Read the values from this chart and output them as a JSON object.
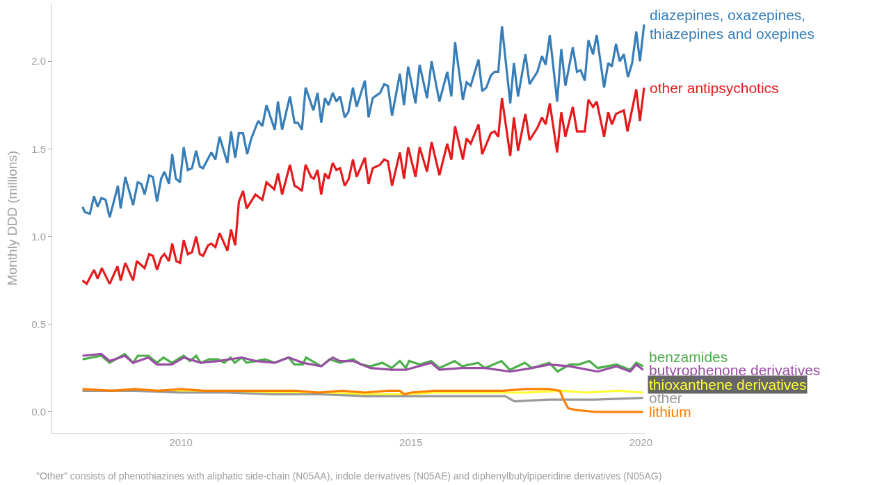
{
  "chart_data": {
    "type": "line",
    "ylabel": "Monthly DDD (millions)",
    "annotations": [
      "\"Other\" consists of phenothiazines with aliphatic side-chain (N05AA), indole derivatives (N05AE) and diphenylbutylpiperidine derivatives (N05AG)"
    ],
    "xlim": [
      2007.2,
      2020.1
    ],
    "ylim": [
      -0.12,
      2.33
    ],
    "xticks": [
      2010,
      2015,
      2020
    ],
    "yticks": [
      {
        "value": 0,
        "label": "0.0"
      },
      {
        "value": 0.5,
        "label": "0.5"
      },
      {
        "value": 1,
        "label": "1.0"
      },
      {
        "value": 1.5,
        "label": "1.5"
      },
      {
        "value": 2,
        "label": "2.0"
      }
    ],
    "grid": false,
    "legend": false,
    "series": [
      {
        "name": "diazepines, oxazepines,\nthiazepines and oxepines",
        "color": "#377eb8",
        "x": [
          2007.86,
          2007.91,
          2008.02,
          2008.11,
          2008.19,
          2008.27,
          2008.36,
          2008.45,
          2008.63,
          2008.69,
          2008.79,
          2008.96,
          2009.06,
          2009.14,
          2009.21,
          2009.31,
          2009.39,
          2009.48,
          2009.57,
          2009.64,
          2009.74,
          2009.81,
          2009.89,
          2009.98,
          2010.06,
          2010.15,
          2010.24,
          2010.33,
          2010.41,
          2010.48,
          2010.66,
          2010.75,
          2010.84,
          2011.01,
          2011.09,
          2011.18,
          2011.26,
          2011.35,
          2011.44,
          2011.53,
          2011.68,
          2011.77,
          2011.86,
          2012.04,
          2012.11,
          2012.2,
          2012.37,
          2012.47,
          2012.54,
          2012.63,
          2012.71,
          2012.88,
          2012.97,
          2013.05,
          2013.13,
          2013.21,
          2013.3,
          2013.38,
          2013.46,
          2013.56,
          2013.64,
          2013.74,
          2013.82,
          2014.0,
          2014.08,
          2014.17,
          2014.33,
          2014.42,
          2014.5,
          2014.59,
          2014.76,
          2014.85,
          2014.94,
          2015.1,
          2015.19,
          2015.35,
          2015.45,
          2015.62,
          2015.79,
          2015.88,
          2015.96,
          2016.13,
          2016.21,
          2016.3,
          2016.47,
          2016.55,
          2016.64,
          2016.74,
          2016.82,
          2016.9,
          2016.98,
          2017.16,
          2017.24,
          2017.33,
          2017.49,
          2017.58,
          2017.75,
          2017.85,
          2017.93,
          2018.02,
          2018.18,
          2018.27,
          2018.36,
          2018.52,
          2018.61,
          2018.69,
          2018.78,
          2018.86,
          2018.96,
          2019.04,
          2019.2,
          2019.29,
          2019.37,
          2019.46,
          2019.54,
          2019.63,
          2019.72,
          2019.81,
          2019.9,
          2019.98,
          2020.07
        ],
        "values": [
          1.17,
          1.14,
          1.13,
          1.23,
          1.17,
          1.22,
          1.21,
          1.11,
          1.29,
          1.16,
          1.34,
          1.18,
          1.31,
          1.3,
          1.24,
          1.35,
          1.34,
          1.2,
          1.33,
          1.37,
          1.3,
          1.47,
          1.33,
          1.31,
          1.51,
          1.38,
          1.39,
          1.49,
          1.4,
          1.39,
          1.48,
          1.44,
          1.57,
          1.42,
          1.6,
          1.45,
          1.59,
          1.59,
          1.47,
          1.56,
          1.66,
          1.63,
          1.75,
          1.61,
          1.77,
          1.61,
          1.8,
          1.65,
          1.65,
          1.61,
          1.85,
          1.72,
          1.82,
          1.65,
          1.79,
          1.75,
          1.82,
          1.77,
          1.8,
          1.68,
          1.71,
          1.85,
          1.74,
          1.89,
          1.68,
          1.79,
          1.82,
          1.87,
          1.86,
          1.69,
          1.93,
          1.75,
          1.97,
          1.76,
          1.98,
          1.79,
          2.0,
          1.77,
          1.94,
          1.8,
          2.11,
          1.78,
          1.88,
          1.86,
          2.01,
          1.83,
          1.85,
          1.92,
          1.94,
          1.94,
          2.2,
          1.76,
          1.99,
          1.8,
          2.04,
          1.87,
          1.94,
          2.03,
          1.98,
          2.15,
          1.77,
          2.07,
          1.86,
          2.08,
          1.94,
          1.95,
          1.89,
          2.12,
          2.04,
          2.15,
          1.85,
          1.99,
          1.97,
          2.1,
          2.0,
          2.04,
          1.91,
          1.99,
          2.17,
          2.0,
          2.21
        ]
      },
      {
        "name": "other antipsychotics",
        "color": "#e41a1c",
        "x": [
          2007.86,
          2007.95,
          2008.11,
          2008.19,
          2008.28,
          2008.45,
          2008.62,
          2008.69,
          2008.79,
          2008.96,
          2009.04,
          2009.21,
          2009.31,
          2009.39,
          2009.48,
          2009.57,
          2009.64,
          2009.74,
          2009.81,
          2009.9,
          2009.98,
          2010.06,
          2010.15,
          2010.24,
          2010.33,
          2010.41,
          2010.48,
          2010.59,
          2010.66,
          2010.75,
          2010.84,
          2011.01,
          2011.09,
          2011.18,
          2011.26,
          2011.35,
          2011.43,
          2011.62,
          2011.77,
          2011.86,
          2012.03,
          2012.11,
          2012.2,
          2012.37,
          2012.47,
          2012.54,
          2012.63,
          2012.71,
          2012.83,
          2012.89,
          2012.97,
          2013.05,
          2013.13,
          2013.21,
          2013.3,
          2013.38,
          2013.46,
          2013.56,
          2013.65,
          2013.74,
          2013.82,
          2014.0,
          2014.08,
          2014.17,
          2014.33,
          2014.42,
          2014.5,
          2014.59,
          2014.76,
          2014.85,
          2014.94,
          2015.1,
          2015.19,
          2015.35,
          2015.45,
          2015.62,
          2015.79,
          2015.88,
          2015.96,
          2016.13,
          2016.21,
          2016.3,
          2016.47,
          2016.55,
          2016.74,
          2016.82,
          2016.9,
          2016.98,
          2017.16,
          2017.24,
          2017.33,
          2017.49,
          2017.58,
          2017.75,
          2017.85,
          2017.93,
          2018.02,
          2018.18,
          2018.27,
          2018.36,
          2018.52,
          2018.61,
          2018.78,
          2018.86,
          2018.96,
          2019.04,
          2019.2,
          2019.29,
          2019.37,
          2019.46,
          2019.63,
          2019.71,
          2019.9,
          2019.98,
          2020.07
        ],
        "values": [
          0.75,
          0.73,
          0.81,
          0.76,
          0.82,
          0.73,
          0.83,
          0.75,
          0.85,
          0.75,
          0.86,
          0.82,
          0.9,
          0.89,
          0.81,
          0.88,
          0.9,
          0.86,
          0.96,
          0.86,
          0.85,
          0.98,
          0.9,
          0.91,
          1.0,
          0.9,
          0.89,
          0.95,
          0.96,
          0.94,
          1.02,
          0.92,
          1.04,
          0.95,
          1.2,
          1.26,
          1.16,
          1.24,
          1.21,
          1.31,
          1.27,
          1.36,
          1.24,
          1.41,
          1.29,
          1.28,
          1.26,
          1.41,
          1.34,
          1.33,
          1.38,
          1.24,
          1.36,
          1.33,
          1.42,
          1.38,
          1.39,
          1.29,
          1.33,
          1.44,
          1.34,
          1.45,
          1.3,
          1.39,
          1.41,
          1.44,
          1.43,
          1.29,
          1.48,
          1.33,
          1.51,
          1.34,
          1.51,
          1.37,
          1.54,
          1.35,
          1.53,
          1.44,
          1.63,
          1.44,
          1.56,
          1.53,
          1.64,
          1.47,
          1.59,
          1.6,
          1.57,
          1.79,
          1.46,
          1.68,
          1.49,
          1.7,
          1.55,
          1.62,
          1.68,
          1.64,
          1.76,
          1.48,
          1.71,
          1.57,
          1.74,
          1.6,
          1.6,
          1.78,
          1.74,
          1.77,
          1.57,
          1.71,
          1.64,
          1.7,
          1.72,
          1.6,
          1.84,
          1.66,
          1.85
        ]
      },
      {
        "name": "benzamides",
        "color": "#4daf4a",
        "x": [
          2007.86,
          2008.07,
          2008.27,
          2008.45,
          2008.78,
          2008.96,
          2009.06,
          2009.29,
          2009.48,
          2009.62,
          2009.8,
          2010.06,
          2010.2,
          2010.33,
          2010.43,
          2010.61,
          2010.81,
          2010.94,
          2011.08,
          2011.17,
          2011.32,
          2011.43,
          2011.63,
          2011.83,
          2012.04,
          2012.34,
          2012.47,
          2012.65,
          2012.72,
          2013.05,
          2013.23,
          2013.46,
          2013.74,
          2013.92,
          2014.12,
          2014.38,
          2014.58,
          2014.76,
          2014.89,
          2014.96,
          2015.19,
          2015.44,
          2015.62,
          2015.95,
          2016.11,
          2016.46,
          2016.61,
          2016.97,
          2017.15,
          2017.48,
          2017.63,
          2018.01,
          2018.19,
          2018.45,
          2018.65,
          2018.88,
          2019.06,
          2019.47,
          2019.77,
          2019.9,
          2020.05
        ],
        "values": [
          0.3,
          0.31,
          0.32,
          0.28,
          0.33,
          0.28,
          0.32,
          0.32,
          0.28,
          0.31,
          0.28,
          0.32,
          0.29,
          0.32,
          0.28,
          0.3,
          0.3,
          0.28,
          0.31,
          0.28,
          0.31,
          0.28,
          0.29,
          0.3,
          0.28,
          0.31,
          0.27,
          0.27,
          0.31,
          0.26,
          0.3,
          0.28,
          0.3,
          0.27,
          0.26,
          0.28,
          0.25,
          0.29,
          0.25,
          0.29,
          0.27,
          0.29,
          0.25,
          0.29,
          0.26,
          0.28,
          0.25,
          0.29,
          0.24,
          0.28,
          0.25,
          0.28,
          0.23,
          0.27,
          0.27,
          0.29,
          0.25,
          0.27,
          0.24,
          0.28,
          0.26
        ]
      },
      {
        "name": "butyrophenone derivatives",
        "color": "#984ea3",
        "x": [
          2007.86,
          2008.27,
          2008.45,
          2008.78,
          2008.96,
          2009.29,
          2009.48,
          2009.8,
          2010.06,
          2010.43,
          2010.81,
          2011.32,
          2011.63,
          2012.04,
          2012.34,
          2012.65,
          2013.05,
          2013.3,
          2013.46,
          2013.74,
          2014.12,
          2014.58,
          2014.89,
          2015.44,
          2015.62,
          2016.11,
          2016.61,
          2017.15,
          2017.63,
          2018.01,
          2018.45,
          2019.06,
          2019.47,
          2019.77,
          2019.9,
          2020.05
        ],
        "values": [
          0.32,
          0.33,
          0.29,
          0.32,
          0.28,
          0.31,
          0.27,
          0.27,
          0.31,
          0.28,
          0.29,
          0.31,
          0.29,
          0.28,
          0.31,
          0.28,
          0.26,
          0.31,
          0.29,
          0.29,
          0.25,
          0.24,
          0.24,
          0.28,
          0.24,
          0.25,
          0.25,
          0.23,
          0.25,
          0.27,
          0.26,
          0.23,
          0.26,
          0.23,
          0.27,
          0.24
        ]
      },
      {
        "name": "thioxanthene derivatives",
        "color": "#ffff33",
        "x": [
          2007.86,
          2010,
          2012,
          2013,
          2014,
          2014.85,
          2015.5,
          2016.5,
          2017.5,
          2018.3,
          2018.8,
          2019.5,
          2020.05
        ],
        "values": [
          0.12,
          0.12,
          0.11,
          0.11,
          0.1,
          0.1,
          0.11,
          0.11,
          0.11,
          0.12,
          0.11,
          0.12,
          0.11
        ]
      },
      {
        "name": "other",
        "color": "#999999",
        "x": [
          2007.86,
          2009,
          2010,
          2011,
          2012,
          2013,
          2014,
          2015,
          2016,
          2017.05,
          2017.25,
          2018,
          2019,
          2020.05
        ],
        "values": [
          0.12,
          0.12,
          0.11,
          0.11,
          0.1,
          0.1,
          0.09,
          0.09,
          0.09,
          0.09,
          0.06,
          0.07,
          0.07,
          0.08
        ]
      },
      {
        "name": "lithium",
        "color": "#ff7f00",
        "x": [
          2007.86,
          2008.5,
          2009,
          2009.5,
          2010,
          2010.5,
          2011,
          2011.5,
          2012,
          2012.5,
          2013,
          2013.5,
          2014,
          2014.5,
          2014.76,
          2014.85,
          2015,
          2015.5,
          2016,
          2016.5,
          2017,
          2017.5,
          2018,
          2018.24,
          2018.3,
          2018.42,
          2018.6,
          2019,
          2020.05
        ],
        "values": [
          0.13,
          0.12,
          0.13,
          0.12,
          0.13,
          0.12,
          0.12,
          0.12,
          0.12,
          0.12,
          0.11,
          0.12,
          0.11,
          0.12,
          0.12,
          0.1,
          0.11,
          0.12,
          0.12,
          0.12,
          0.12,
          0.13,
          0.13,
          0.12,
          0.08,
          0.02,
          0.01,
          0.0,
          0.0
        ]
      }
    ]
  }
}
